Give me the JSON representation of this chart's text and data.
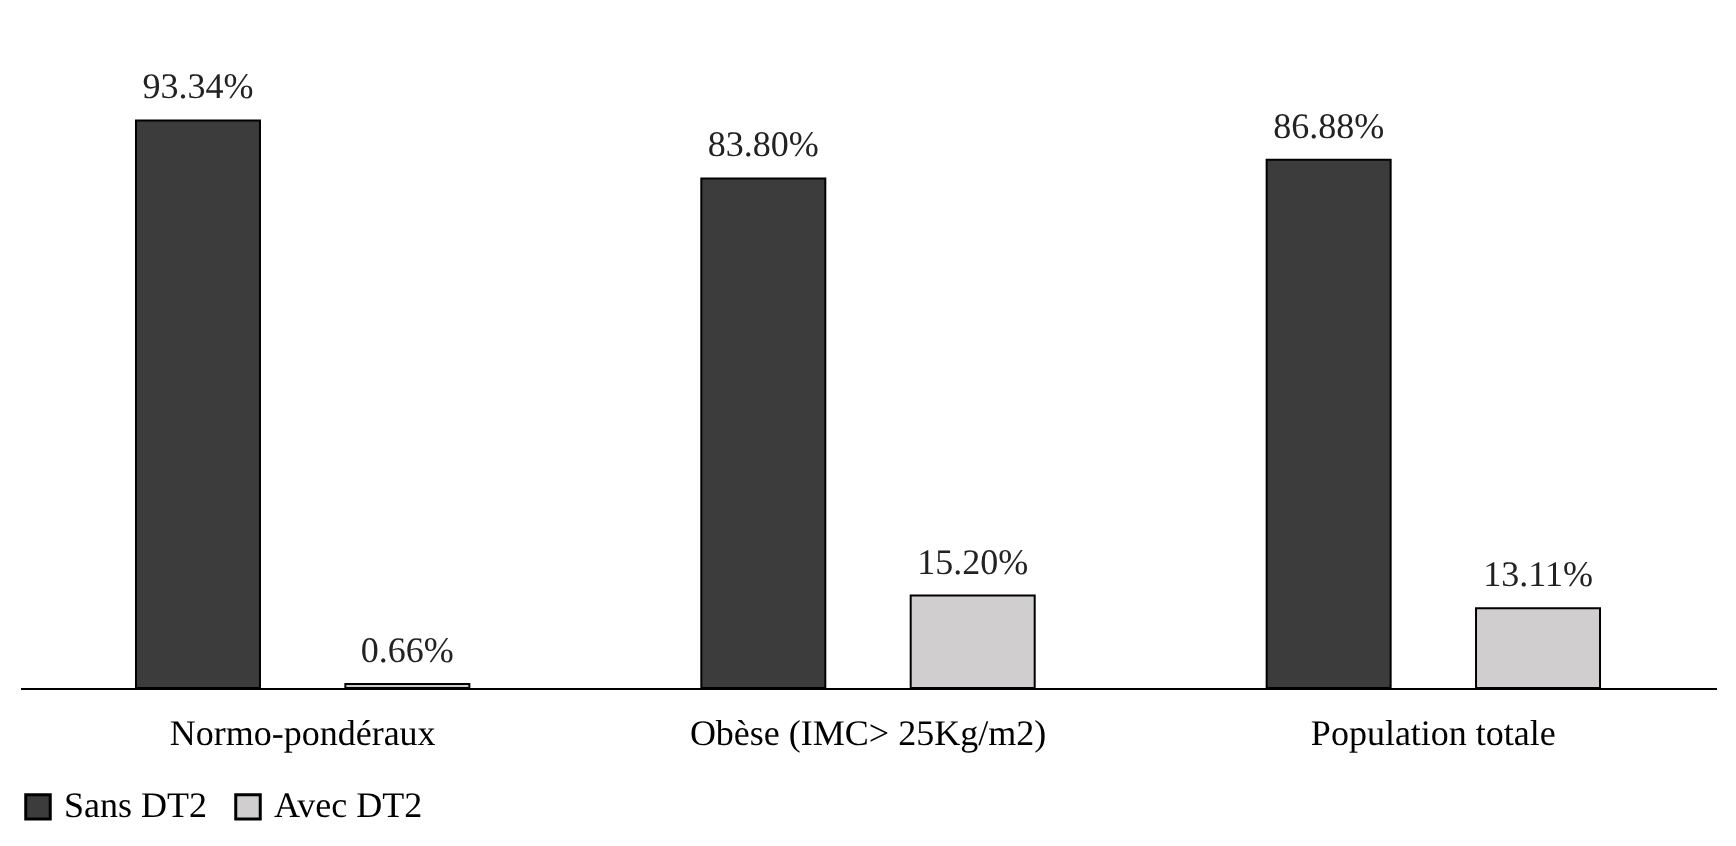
{
  "chart_data": {
    "type": "bar",
    "categories": [
      "Normo-pondéraux",
      "Obèse (IMC> 25Kg/m2)",
      "Population totale"
    ],
    "series": [
      {
        "name": "Sans DT2",
        "color": "#3c3c3c",
        "values": [
          93.34,
          83.8,
          86.88
        ],
        "value_labels": [
          "93.34%",
          "83.80%",
          "86.88%"
        ]
      },
      {
        "name": "Avec DT2",
        "color": "#d0cece",
        "values": [
          0.66,
          15.2,
          13.11
        ],
        "value_labels": [
          "0.66%",
          "15.20%",
          "13.11%"
        ]
      }
    ],
    "legend": "bottom",
    "grid": false
  }
}
